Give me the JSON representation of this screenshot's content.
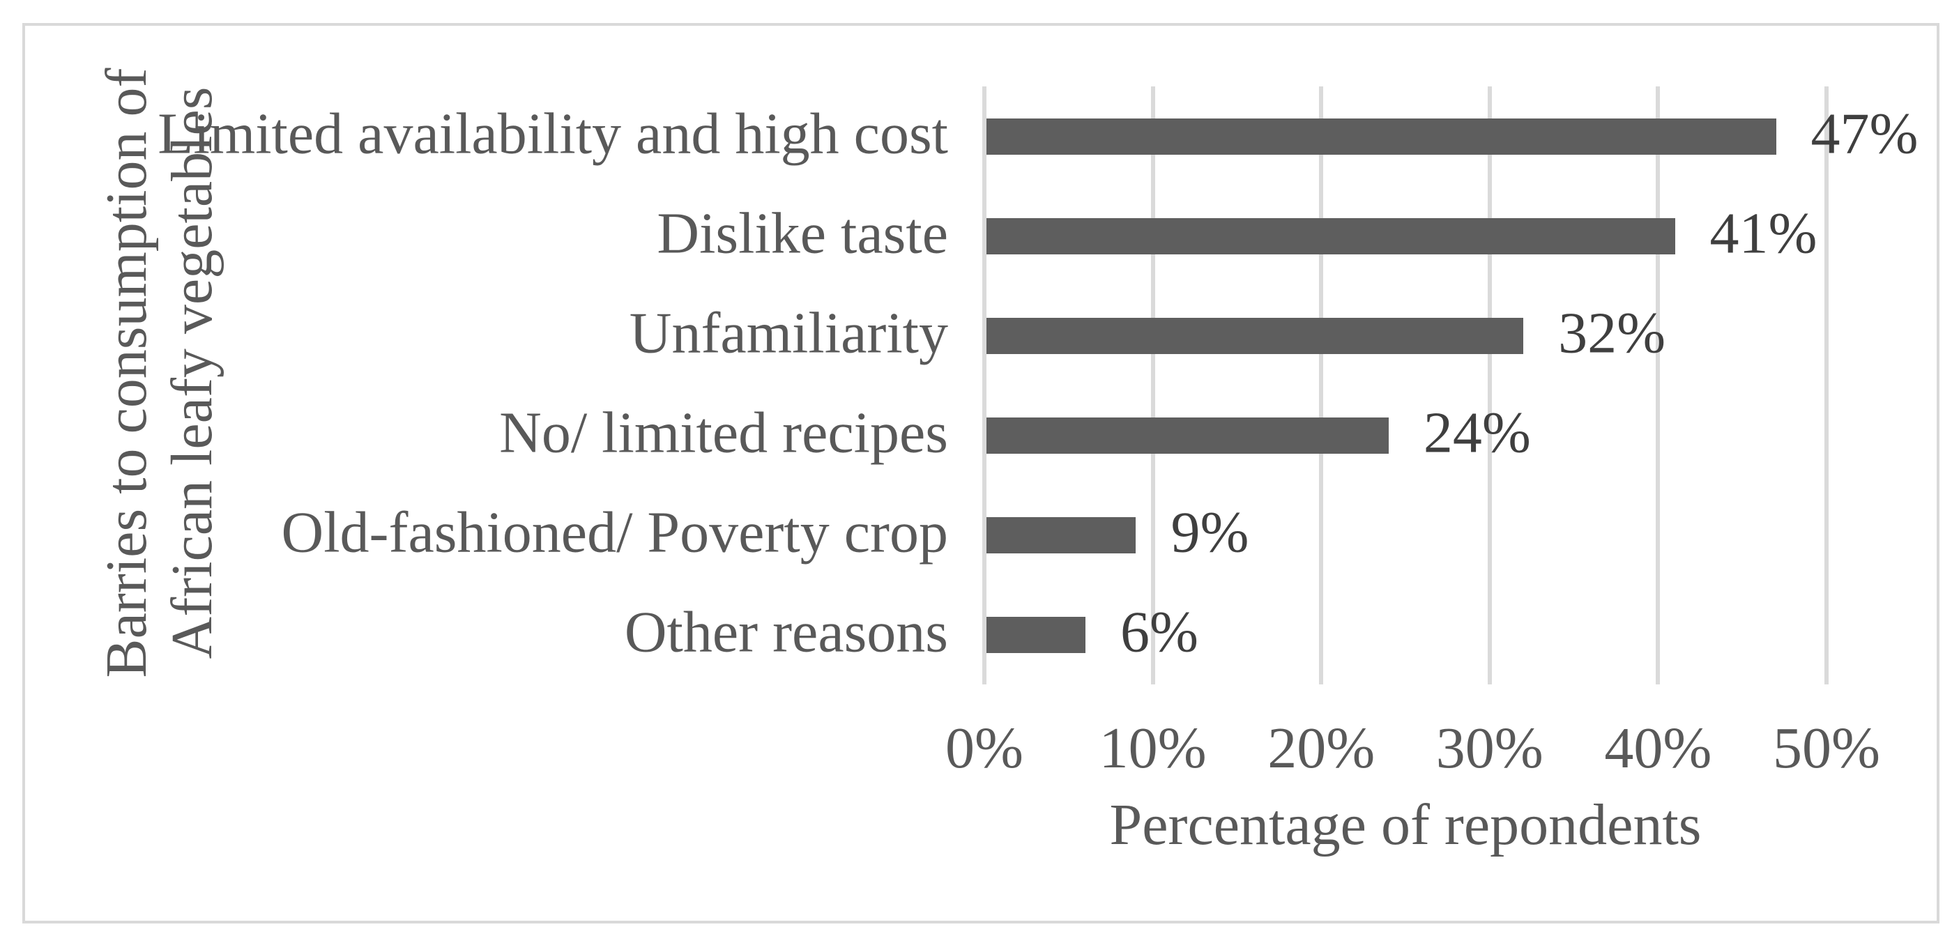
{
  "chart_data": {
    "type": "bar",
    "orientation": "horizontal",
    "title": "",
    "categories": [
      "Limited availability and high cost",
      "Dislike taste",
      "Unfamiliarity",
      "No/ limited recipes",
      "Old-fashioned/ Poverty crop",
      "Other reasons"
    ],
    "values": [
      47,
      41,
      32,
      24,
      9,
      6
    ],
    "value_labels": [
      "47%",
      "41%",
      "32%",
      "24%",
      "9%",
      "6%"
    ],
    "xlabel": "Percentage of repondents",
    "ylabel_lines": [
      "Barries to consumption of",
      "African leafy vegetables"
    ],
    "x_ticks": [
      {
        "value": 0,
        "label": "0%"
      },
      {
        "value": 10,
        "label": "10%"
      },
      {
        "value": 20,
        "label": "20%"
      },
      {
        "value": 30,
        "label": "30%"
      },
      {
        "value": 40,
        "label": "40%"
      },
      {
        "value": 50,
        "label": "50%"
      }
    ],
    "xlim": [
      0,
      50
    ],
    "grid": "vertical-only",
    "legend": "none",
    "colors": {
      "bar": "#5E5E5E",
      "gridline": "#DADADA",
      "axis_text": "#595959",
      "data_label_text": "#3F3F3F",
      "chart_border": "#D9D9D9",
      "background": "#FFFFFF"
    }
  }
}
